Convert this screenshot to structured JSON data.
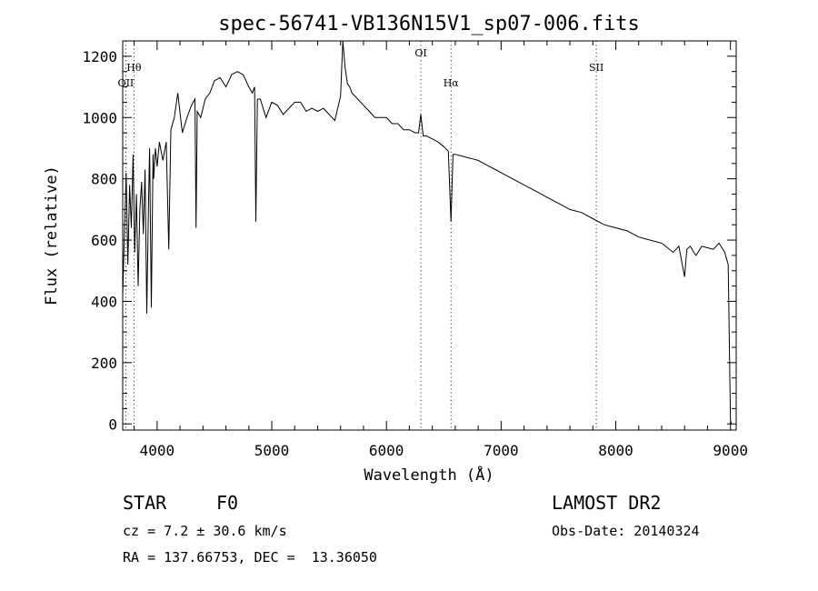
{
  "chart_data": {
    "type": "line",
    "title": "spec-56741-VB136N15V1_sp07-006.fits",
    "xlabel": "Wavelength (Å)",
    "ylabel": "Flux (relative)",
    "xlim": [
      3700,
      9050
    ],
    "ylim": [
      -20,
      1250
    ],
    "xticks": [
      4000,
      5000,
      6000,
      7000,
      8000,
      9000
    ],
    "yticks": [
      0,
      200,
      400,
      600,
      800,
      1000,
      1200
    ],
    "grid": false,
    "series": [
      {
        "x": [
          3700,
          3715,
          3730,
          3745,
          3760,
          3775,
          3790,
          3805,
          3820,
          3835,
          3850,
          3865,
          3880,
          3895,
          3910,
          3925,
          3935,
          3950,
          3965,
          3970,
          3985,
          4000,
          4020,
          4050,
          4080,
          4102,
          4120,
          4150,
          4180,
          4220,
          4260,
          4300,
          4330,
          4340,
          4350,
          4380,
          4420,
          4460,
          4500,
          4550,
          4600,
          4650,
          4700,
          4750,
          4800,
          4830,
          4850,
          4861,
          4875,
          4900,
          4950,
          5000,
          5050,
          5100,
          5150,
          5200,
          5250,
          5300,
          5350,
          5400,
          5450,
          5500,
          5550,
          5600,
          5620,
          5640,
          5660,
          5680,
          5700,
          5750,
          5800,
          5850,
          5900,
          5950,
          6000,
          6050,
          6100,
          6150,
          6200,
          6250,
          6280,
          6300,
          6320,
          6350,
          6400,
          6450,
          6500,
          6540,
          6563,
          6580,
          6600,
          6650,
          6700,
          6750,
          6800,
          6850,
          6900,
          6950,
          7000,
          7100,
          7200,
          7300,
          7400,
          7500,
          7600,
          7700,
          7800,
          7900,
          8000,
          8100,
          8200,
          8300,
          8400,
          8500,
          8550,
          8600,
          8620,
          8650,
          8680,
          8700,
          8750,
          8800,
          8850,
          8900,
          8950,
          8980,
          9000,
          9010
        ],
        "y": [
          420,
          620,
          820,
          520,
          780,
          640,
          880,
          560,
          750,
          450,
          700,
          790,
          620,
          830,
          360,
          720,
          900,
          380,
          880,
          800,
          900,
          840,
          920,
          860,
          920,
          570,
          960,
          1000,
          1080,
          950,
          1000,
          1040,
          1060,
          640,
          1020,
          1000,
          1060,
          1080,
          1120,
          1130,
          1100,
          1140,
          1150,
          1140,
          1100,
          1080,
          1100,
          660,
          1060,
          1060,
          1000,
          1050,
          1040,
          1010,
          1030,
          1050,
          1050,
          1020,
          1030,
          1020,
          1030,
          1010,
          990,
          1070,
          1250,
          1160,
          1110,
          1100,
          1080,
          1060,
          1040,
          1020,
          1000,
          1000,
          1000,
          980,
          980,
          960,
          960,
          950,
          950,
          1010,
          940,
          940,
          930,
          920,
          905,
          890,
          660,
          880,
          880,
          875,
          870,
          865,
          860,
          850,
          840,
          830,
          820,
          800,
          780,
          760,
          740,
          720,
          700,
          690,
          670,
          650,
          640,
          630,
          610,
          600,
          590,
          560,
          580,
          480,
          570,
          580,
          560,
          550,
          580,
          575,
          570,
          590,
          560,
          520,
          10,
          0
        ]
      }
    ],
    "annotations": [
      {
        "label": "OII",
        "x": 3727
      },
      {
        "label": "Hθ",
        "x": 3798
      },
      {
        "label": "OI",
        "x": 6300
      },
      {
        "label": "Hα",
        "x": 6563
      },
      {
        "label": "SII",
        "x": 7830
      }
    ]
  },
  "info": {
    "class": "STAR",
    "subclass": "F0",
    "survey": "LAMOST DR2",
    "redshift": "cz = 7.2 ± 30.6 km/s",
    "obs_date": "Obs-Date: 20140324",
    "coords": "RA = 137.66753, DEC =  13.36050"
  }
}
